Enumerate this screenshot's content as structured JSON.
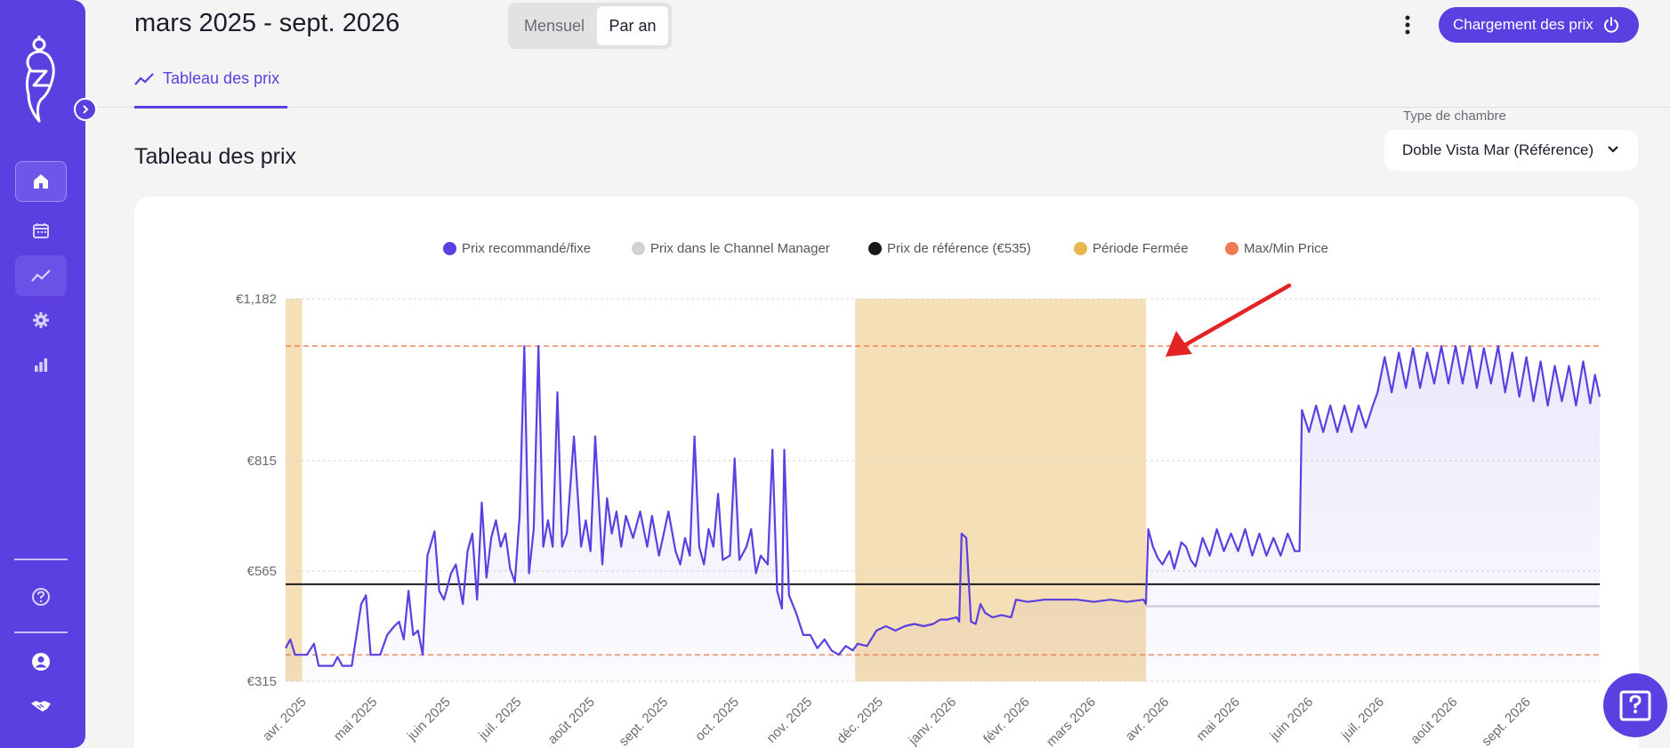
{
  "header": {
    "date_range": "mars 2025 - sept. 2026",
    "view_toggle": {
      "monthly": "Mensuel",
      "yearly": "Par an",
      "selected": "Par an"
    },
    "load_button": "Chargement des prix"
  },
  "tabs": [
    {
      "label": "Tableau des prix",
      "active": true
    }
  ],
  "main": {
    "title": "Tableau des prix",
    "room_type_label": "Type de chambre",
    "room_type_value": "Doble Vista Mar (Référence)"
  },
  "sidebar": {
    "items": [
      "home-icon",
      "calendar-icon",
      "chart-icon",
      "gear-icon",
      "bar-chart-icon",
      "help-icon",
      "user-icon",
      "handshake-icon"
    ],
    "active": "chart-icon"
  },
  "colors": {
    "brand": "#5b3fe0",
    "recommended": "#5b3fe0",
    "channel_manager": "#c9c9d1",
    "reference": "#1a1a1a",
    "closed_period": "#f5dfb6",
    "max_min": "#f07a52"
  },
  "chart_data": {
    "type": "line",
    "legend": [
      {
        "name": "Prix recommandé/fixe",
        "color": "#5b3fe0"
      },
      {
        "name": "Prix dans le Channel Manager",
        "color": "#d2d2d6"
      },
      {
        "name": "Prix de référence (€535)",
        "color": "#1a1a1a"
      },
      {
        "name": "Période Fermée",
        "color": "#e8b64f"
      },
      {
        "name": "Max/Min Price",
        "color": "#f07a52"
      }
    ],
    "y_ticks": [
      "€1,182",
      "€815",
      "€565",
      "€315"
    ],
    "y_tick_values": [
      1182,
      815,
      565,
      315
    ],
    "ylim": [
      315,
      1182
    ],
    "x_start": "2025-03-23",
    "x_end": "2026-09-30",
    "x_tick_labels": [
      "avr. 2025",
      "mai 2025",
      "juin 2025",
      "juil. 2025",
      "août 2025",
      "sept. 2025",
      "oct. 2025",
      "nov. 2025",
      "déc. 2025",
      "janv. 2026",
      "févr. 2026",
      "mars 2026",
      "avr. 2026",
      "mai 2026",
      "juin 2026",
      "juil. 2026",
      "août 2026",
      "sept. 2026"
    ],
    "x_tick_dates": [
      "2025-04-01",
      "2025-05-01",
      "2025-06-01",
      "2025-07-01",
      "2025-08-01",
      "2025-09-01",
      "2025-10-01",
      "2025-11-01",
      "2025-12-01",
      "2026-01-01",
      "2026-02-01",
      "2026-03-01",
      "2026-04-01",
      "2026-05-01",
      "2026-06-01",
      "2026-07-01",
      "2026-08-01",
      "2026-09-01"
    ],
    "reference_price": 535,
    "max_price": 1075,
    "min_price": 375,
    "channel_manager_after": {
      "from": "2026-03-22",
      "value": 485
    },
    "closed_periods": [
      {
        "start": "2025-03-23",
        "end": "2025-03-30"
      },
      {
        "start": "2025-11-19",
        "end": "2026-03-22"
      }
    ],
    "series": [
      {
        "name": "Prix recommandé/fixe",
        "points": [
          [
            "2025-03-23",
            390
          ],
          [
            "2025-03-25",
            410
          ],
          [
            "2025-03-27",
            375
          ],
          [
            "2025-04-01",
            375
          ],
          [
            "2025-04-04",
            400
          ],
          [
            "2025-04-06",
            350
          ],
          [
            "2025-04-12",
            350
          ],
          [
            "2025-04-14",
            370
          ],
          [
            "2025-04-16",
            350
          ],
          [
            "2025-04-20",
            350
          ],
          [
            "2025-04-24",
            490
          ],
          [
            "2025-04-26",
            510
          ],
          [
            "2025-04-28",
            375
          ],
          [
            "2025-05-02",
            375
          ],
          [
            "2025-05-05",
            420
          ],
          [
            "2025-05-08",
            440
          ],
          [
            "2025-05-10",
            450
          ],
          [
            "2025-05-12",
            410
          ],
          [
            "2025-05-14",
            520
          ],
          [
            "2025-05-16",
            420
          ],
          [
            "2025-05-18",
            430
          ],
          [
            "2025-05-20",
            375
          ],
          [
            "2025-05-22",
            600
          ],
          [
            "2025-05-25",
            655
          ],
          [
            "2025-05-27",
            520
          ],
          [
            "2025-05-29",
            500
          ],
          [
            "2025-06-01",
            560
          ],
          [
            "2025-06-03",
            580
          ],
          [
            "2025-06-06",
            490
          ],
          [
            "2025-06-08",
            610
          ],
          [
            "2025-06-10",
            650
          ],
          [
            "2025-06-12",
            500
          ],
          [
            "2025-06-14",
            720
          ],
          [
            "2025-06-16",
            550
          ],
          [
            "2025-06-18",
            640
          ],
          [
            "2025-06-20",
            680
          ],
          [
            "2025-06-22",
            620
          ],
          [
            "2025-06-24",
            650
          ],
          [
            "2025-06-26",
            570
          ],
          [
            "2025-06-28",
            540
          ],
          [
            "2025-06-30",
            690
          ],
          [
            "2025-07-02",
            1075
          ],
          [
            "2025-07-04",
            560
          ],
          [
            "2025-07-06",
            660
          ],
          [
            "2025-07-08",
            1075
          ],
          [
            "2025-07-10",
            620
          ],
          [
            "2025-07-12",
            680
          ],
          [
            "2025-07-14",
            620
          ],
          [
            "2025-07-16",
            970
          ],
          [
            "2025-07-18",
            620
          ],
          [
            "2025-07-20",
            650
          ],
          [
            "2025-07-23",
            870
          ],
          [
            "2025-07-26",
            620
          ],
          [
            "2025-07-28",
            680
          ],
          [
            "2025-07-30",
            610
          ],
          [
            "2025-08-01",
            870
          ],
          [
            "2025-08-04",
            580
          ],
          [
            "2025-08-06",
            730
          ],
          [
            "2025-08-08",
            650
          ],
          [
            "2025-08-10",
            700
          ],
          [
            "2025-08-12",
            620
          ],
          [
            "2025-08-14",
            690
          ],
          [
            "2025-08-17",
            640
          ],
          [
            "2025-08-20",
            700
          ],
          [
            "2025-08-23",
            620
          ],
          [
            "2025-08-25",
            690
          ],
          [
            "2025-08-28",
            600
          ],
          [
            "2025-09-01",
            700
          ],
          [
            "2025-09-04",
            610
          ],
          [
            "2025-09-06",
            580
          ],
          [
            "2025-09-08",
            640
          ],
          [
            "2025-09-10",
            600
          ],
          [
            "2025-09-12",
            870
          ],
          [
            "2025-09-14",
            620
          ],
          [
            "2025-09-16",
            580
          ],
          [
            "2025-09-18",
            660
          ],
          [
            "2025-09-20",
            620
          ],
          [
            "2025-09-22",
            740
          ],
          [
            "2025-09-24",
            590
          ],
          [
            "2025-09-27",
            600
          ],
          [
            "2025-09-29",
            820
          ],
          [
            "2025-10-01",
            590
          ],
          [
            "2025-10-04",
            620
          ],
          [
            "2025-10-06",
            660
          ],
          [
            "2025-10-08",
            560
          ],
          [
            "2025-10-10",
            600
          ],
          [
            "2025-10-13",
            580
          ],
          [
            "2025-10-15",
            840
          ],
          [
            "2025-10-17",
            520
          ],
          [
            "2025-10-19",
            480
          ],
          [
            "2025-10-20",
            840
          ],
          [
            "2025-10-22",
            510
          ],
          [
            "2025-10-25",
            470
          ],
          [
            "2025-10-28",
            420
          ],
          [
            "2025-10-31",
            420
          ],
          [
            "2025-11-03",
            390
          ],
          [
            "2025-11-06",
            410
          ],
          [
            "2025-11-09",
            385
          ],
          [
            "2025-11-12",
            375
          ],
          [
            "2025-11-15",
            395
          ],
          [
            "2025-11-18",
            385
          ],
          [
            "2025-11-20",
            400
          ],
          [
            "2025-11-24",
            395
          ],
          [
            "2025-11-28",
            430
          ],
          [
            "2025-12-02",
            440
          ],
          [
            "2025-12-06",
            430
          ],
          [
            "2025-12-10",
            440
          ],
          [
            "2025-12-14",
            445
          ],
          [
            "2025-12-18",
            440
          ],
          [
            "2025-12-22",
            445
          ],
          [
            "2025-12-25",
            455
          ],
          [
            "2025-12-28",
            455
          ],
          [
            "2026-01-01",
            460
          ],
          [
            "2026-01-02",
            450
          ],
          [
            "2026-01-03",
            650
          ],
          [
            "2026-01-05",
            640
          ],
          [
            "2026-01-07",
            450
          ],
          [
            "2026-01-09",
            445
          ],
          [
            "2026-01-11",
            490
          ],
          [
            "2026-01-13",
            470
          ],
          [
            "2026-01-16",
            460
          ],
          [
            "2026-01-20",
            465
          ],
          [
            "2026-01-24",
            460
          ],
          [
            "2026-01-26",
            500
          ],
          [
            "2026-01-31",
            495
          ],
          [
            "2026-02-07",
            500
          ],
          [
            "2026-02-14",
            500
          ],
          [
            "2026-02-21",
            500
          ],
          [
            "2026-02-28",
            495
          ],
          [
            "2026-03-07",
            500
          ],
          [
            "2026-03-14",
            495
          ],
          [
            "2026-03-21",
            500
          ],
          [
            "2026-03-22",
            490
          ],
          [
            "2026-03-23",
            660
          ],
          [
            "2026-03-25",
            620
          ],
          [
            "2026-03-27",
            595
          ],
          [
            "2026-03-29",
            580
          ],
          [
            "2026-04-01",
            610
          ],
          [
            "2026-04-03",
            570
          ],
          [
            "2026-04-06",
            630
          ],
          [
            "2026-04-08",
            620
          ],
          [
            "2026-04-10",
            590
          ],
          [
            "2026-04-12",
            575
          ],
          [
            "2026-04-15",
            640
          ],
          [
            "2026-04-18",
            600
          ],
          [
            "2026-04-21",
            660
          ],
          [
            "2026-04-24",
            610
          ],
          [
            "2026-04-27",
            650
          ],
          [
            "2026-04-30",
            610
          ],
          [
            "2026-05-03",
            660
          ],
          [
            "2026-05-06",
            600
          ],
          [
            "2026-05-09",
            650
          ],
          [
            "2026-05-12",
            600
          ],
          [
            "2026-05-15",
            640
          ],
          [
            "2026-05-18",
            600
          ],
          [
            "2026-05-21",
            650
          ],
          [
            "2026-05-24",
            610
          ],
          [
            "2026-05-26",
            610
          ],
          [
            "2026-05-27",
            930
          ],
          [
            "2026-05-30",
            880
          ],
          [
            "2026-06-02",
            940
          ],
          [
            "2026-06-05",
            880
          ],
          [
            "2026-06-08",
            940
          ],
          [
            "2026-06-11",
            880
          ],
          [
            "2026-06-14",
            940
          ],
          [
            "2026-06-17",
            880
          ],
          [
            "2026-06-20",
            940
          ],
          [
            "2026-06-23",
            890
          ],
          [
            "2026-06-26",
            940
          ],
          [
            "2026-06-28",
            970
          ],
          [
            "2026-07-01",
            1050
          ],
          [
            "2026-07-04",
            970
          ],
          [
            "2026-07-07",
            1060
          ],
          [
            "2026-07-10",
            980
          ],
          [
            "2026-07-13",
            1070
          ],
          [
            "2026-07-16",
            980
          ],
          [
            "2026-07-19",
            1060
          ],
          [
            "2026-07-22",
            990
          ],
          [
            "2026-07-25",
            1075
          ],
          [
            "2026-07-28",
            990
          ],
          [
            "2026-07-31",
            1075
          ],
          [
            "2026-08-03",
            990
          ],
          [
            "2026-08-06",
            1075
          ],
          [
            "2026-08-09",
            980
          ],
          [
            "2026-08-12",
            1070
          ],
          [
            "2026-08-15",
            990
          ],
          [
            "2026-08-18",
            1075
          ],
          [
            "2026-08-21",
            970
          ],
          [
            "2026-08-24",
            1060
          ],
          [
            "2026-08-27",
            960
          ],
          [
            "2026-08-30",
            1050
          ],
          [
            "2026-09-02",
            950
          ],
          [
            "2026-09-05",
            1040
          ],
          [
            "2026-09-08",
            940
          ],
          [
            "2026-09-11",
            1030
          ],
          [
            "2026-09-14",
            950
          ],
          [
            "2026-09-17",
            1030
          ],
          [
            "2026-09-20",
            940
          ],
          [
            "2026-09-23",
            1040
          ],
          [
            "2026-09-26",
            945
          ],
          [
            "2026-09-28",
            1010
          ],
          [
            "2026-09-30",
            960
          ]
        ]
      }
    ]
  }
}
